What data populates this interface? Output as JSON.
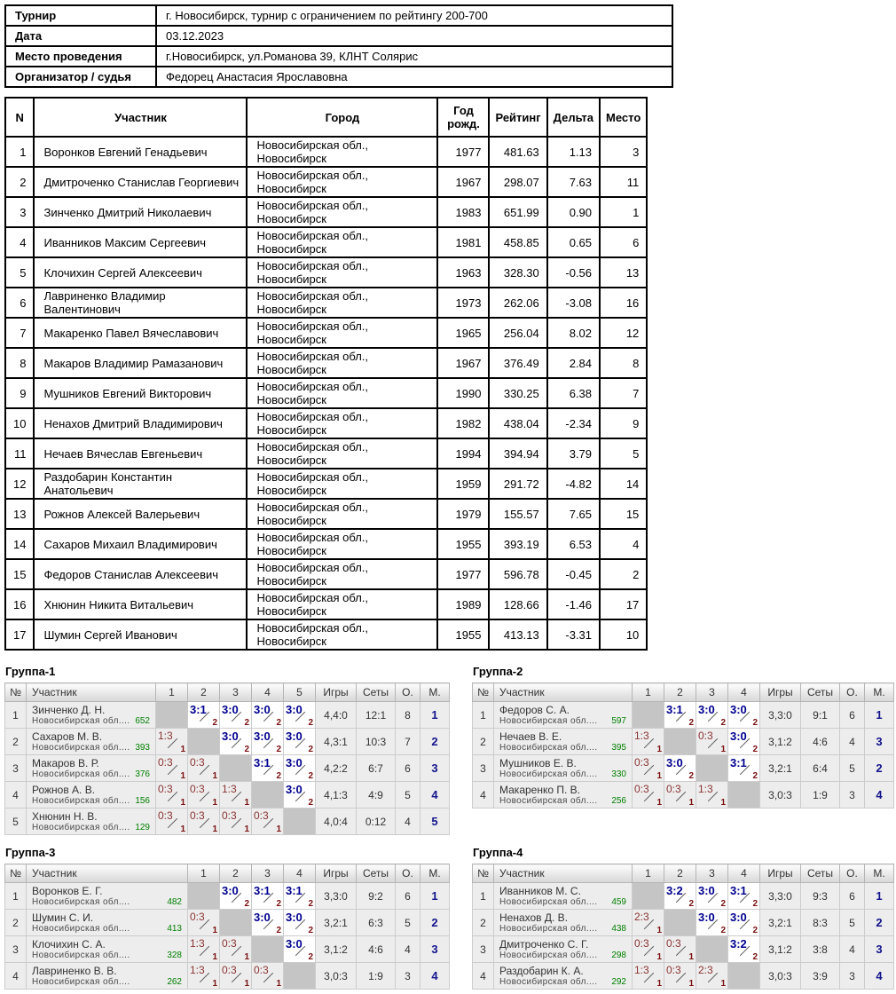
{
  "info": {
    "rows": [
      {
        "label": "Турнир",
        "value": "г. Новосибирск, турнир с ограничением по рейтингу 200-700"
      },
      {
        "label": "Дата",
        "value": "03.12.2023"
      },
      {
        "label": "Место проведения",
        "value": "г.Новосибирск, ул.Романова 39, КЛНТ Солярис"
      },
      {
        "label": "Организатор / судья",
        "value": "Федорец Анастасия Ярославовна"
      }
    ]
  },
  "main_table": {
    "headers": [
      "N",
      "Участник",
      "Город",
      "Год рожд.",
      "Рейтинг",
      "Дельта",
      "Место"
    ],
    "rows": [
      {
        "n": "1",
        "name": "Воронков Евгений Генадьевич",
        "city": "Новосибирская обл., Новосибирск",
        "year": "1977",
        "rating": "481.63",
        "delta": "1.13",
        "place": "3"
      },
      {
        "n": "2",
        "name": "Дмитроченко Станислав Георгиевич",
        "city": "Новосибирская обл., Новосибирск",
        "year": "1967",
        "rating": "298.07",
        "delta": "7.63",
        "place": "11"
      },
      {
        "n": "3",
        "name": "Зинченко Дмитрий Николаевич",
        "city": "Новосибирская обл., Новосибирск",
        "year": "1983",
        "rating": "651.99",
        "delta": "0.90",
        "place": "1"
      },
      {
        "n": "4",
        "name": "Иванников Максим Сергеевич",
        "city": "Новосибирская обл., Новосибирск",
        "year": "1981",
        "rating": "458.85",
        "delta": "0.65",
        "place": "6"
      },
      {
        "n": "5",
        "name": "Клочихин Сергей Алексеевич",
        "city": "Новосибирская обл., Новосибирск",
        "year": "1963",
        "rating": "328.30",
        "delta": "-0.56",
        "place": "13"
      },
      {
        "n": "6",
        "name": "Лавриненко Владимир Валентинович",
        "city": "Новосибирская обл., Новосибирск",
        "year": "1973",
        "rating": "262.06",
        "delta": "-3.08",
        "place": "16"
      },
      {
        "n": "7",
        "name": "Макаренко Павел Вячеславович",
        "city": "Новосибирская обл., Новосибирск",
        "year": "1965",
        "rating": "256.04",
        "delta": "8.02",
        "place": "12"
      },
      {
        "n": "8",
        "name": "Макаров Владимир Рамазанович",
        "city": "Новосибирская обл., Новосибирск",
        "year": "1967",
        "rating": "376.49",
        "delta": "2.84",
        "place": "8"
      },
      {
        "n": "9",
        "name": "Мушников Евгений Викторович",
        "city": "Новосибирская обл., Новосибирск",
        "year": "1990",
        "rating": "330.25",
        "delta": "6.38",
        "place": "7"
      },
      {
        "n": "10",
        "name": "Ненахов Дмитрий Владимирович",
        "city": "Новосибирская обл., Новосибирск",
        "year": "1982",
        "rating": "438.04",
        "delta": "-2.34",
        "place": "9"
      },
      {
        "n": "11",
        "name": "Нечаев Вячеслав Евгеньевич",
        "city": "Новосибирская обл., Новосибирск",
        "year": "1994",
        "rating": "394.94",
        "delta": "3.79",
        "place": "5"
      },
      {
        "n": "12",
        "name": "Раздобарин Константин Анатольевич",
        "city": "Новосибирская обл., Новосибирск",
        "year": "1959",
        "rating": "291.72",
        "delta": "-4.82",
        "place": "14"
      },
      {
        "n": "13",
        "name": "Рожнов Алексей Валерьевич",
        "city": "Новосибирская обл., Новосибирск",
        "year": "1979",
        "rating": "155.57",
        "delta": "7.65",
        "place": "15"
      },
      {
        "n": "14",
        "name": "Сахаров Михаил Владимирович",
        "city": "Новосибирская обл., Новосибирск",
        "year": "1955",
        "rating": "393.19",
        "delta": "6.53",
        "place": "4"
      },
      {
        "n": "15",
        "name": "Федоров Станислав Алексеевич",
        "city": "Новосибирская обл., Новосибирск",
        "year": "1977",
        "rating": "596.78",
        "delta": "-0.45",
        "place": "2"
      },
      {
        "n": "16",
        "name": "Хнюнин Никита Витальевич",
        "city": "Новосибирская обл., Новосибирск",
        "year": "1989",
        "rating": "128.66",
        "delta": "-1.46",
        "place": "17"
      },
      {
        "n": "17",
        "name": "Шумин Сергей Иванович",
        "city": "Новосибирская обл., Новосибирск",
        "year": "1955",
        "rating": "413.13",
        "delta": "-3.31",
        "place": "10"
      }
    ]
  },
  "group_headers": {
    "num": "№",
    "participant": "Участник",
    "games": "Игры",
    "sets": "Сеты",
    "points": "О.",
    "place": "М."
  },
  "groups": [
    {
      "title": "Группа-1",
      "cols": [
        "1",
        "2",
        "3",
        "4",
        "5"
      ],
      "rows": [
        {
          "num": "1",
          "name": "Зинченко Д. Н.",
          "region": "Новосибирская обл....",
          "rating": "652",
          "results": [
            {
              "t": "self"
            },
            {
              "t": "w",
              "s": "3:1",
              "p": "2"
            },
            {
              "t": "w",
              "s": "3:0",
              "p": "2"
            },
            {
              "t": "w",
              "s": "3:0",
              "p": "2"
            },
            {
              "t": "w",
              "s": "3:0",
              "p": "2"
            }
          ],
          "games": "4,4:0",
          "sets": "12:1",
          "points": "8",
          "place": "1"
        },
        {
          "num": "2",
          "name": "Сахаров М. В.",
          "region": "Новосибирская обл....",
          "rating": "393",
          "results": [
            {
              "t": "l",
              "s": "1:3",
              "p": "1"
            },
            {
              "t": "self"
            },
            {
              "t": "w",
              "s": "3:0",
              "p": "2"
            },
            {
              "t": "w",
              "s": "3:0",
              "p": "2"
            },
            {
              "t": "w",
              "s": "3:0",
              "p": "2"
            }
          ],
          "games": "4,3:1",
          "sets": "10:3",
          "points": "7",
          "place": "2"
        },
        {
          "num": "3",
          "name": "Макаров В. Р.",
          "region": "Новосибирская обл....",
          "rating": "376",
          "results": [
            {
              "t": "l",
              "s": "0:3",
              "p": "1"
            },
            {
              "t": "l",
              "s": "0:3",
              "p": "1"
            },
            {
              "t": "self"
            },
            {
              "t": "w",
              "s": "3:1",
              "p": "2"
            },
            {
              "t": "w",
              "s": "3:0",
              "p": "2"
            }
          ],
          "games": "4,2:2",
          "sets": "6:7",
          "points": "6",
          "place": "3"
        },
        {
          "num": "4",
          "name": "Рожнов А. В.",
          "region": "Новосибирская обл....",
          "rating": "156",
          "results": [
            {
              "t": "l",
              "s": "0:3",
              "p": "1"
            },
            {
              "t": "l",
              "s": "0:3",
              "p": "1"
            },
            {
              "t": "l",
              "s": "1:3",
              "p": "1"
            },
            {
              "t": "self"
            },
            {
              "t": "w",
              "s": "3:0",
              "p": "2"
            }
          ],
          "games": "4,1:3",
          "sets": "4:9",
          "points": "5",
          "place": "4"
        },
        {
          "num": "5",
          "name": "Хнюнин Н. В.",
          "region": "Новосибирская обл....",
          "rating": "129",
          "results": [
            {
              "t": "l",
              "s": "0:3",
              "p": "1"
            },
            {
              "t": "l",
              "s": "0:3",
              "p": "1"
            },
            {
              "t": "l",
              "s": "0:3",
              "p": "1"
            },
            {
              "t": "l",
              "s": "0:3",
              "p": "1"
            },
            {
              "t": "self"
            }
          ],
          "games": "4,0:4",
          "sets": "0:12",
          "points": "4",
          "place": "5"
        }
      ]
    },
    {
      "title": "Группа-2",
      "cols": [
        "1",
        "2",
        "3",
        "4"
      ],
      "rows": [
        {
          "num": "1",
          "name": "Федоров С. А.",
          "region": "Новосибирская обл....",
          "rating": "597",
          "results": [
            {
              "t": "self"
            },
            {
              "t": "w",
              "s": "3:1",
              "p": "2"
            },
            {
              "t": "w",
              "s": "3:0",
              "p": "2"
            },
            {
              "t": "w",
              "s": "3:0",
              "p": "2"
            }
          ],
          "games": "3,3:0",
          "sets": "9:1",
          "points": "6",
          "place": "1"
        },
        {
          "num": "2",
          "name": "Нечаев В. Е.",
          "region": "Новосибирская обл....",
          "rating": "395",
          "results": [
            {
              "t": "l",
              "s": "1:3",
              "p": "1"
            },
            {
              "t": "self"
            },
            {
              "t": "l",
              "s": "0:3",
              "p": "1"
            },
            {
              "t": "w",
              "s": "3:0",
              "p": "2"
            }
          ],
          "games": "3,1:2",
          "sets": "4:6",
          "points": "4",
          "place": "3"
        },
        {
          "num": "3",
          "name": "Мушников Е. В.",
          "region": "Новосибирская обл....",
          "rating": "330",
          "results": [
            {
              "t": "l",
              "s": "0:3",
              "p": "1"
            },
            {
              "t": "w",
              "s": "3:0",
              "p": "2"
            },
            {
              "t": "self"
            },
            {
              "t": "w",
              "s": "3:1",
              "p": "2"
            }
          ],
          "games": "3,2:1",
          "sets": "6:4",
          "points": "5",
          "place": "2"
        },
        {
          "num": "4",
          "name": "Макаренко П. В.",
          "region": "Новосибирская обл....",
          "rating": "256",
          "results": [
            {
              "t": "l",
              "s": "0:3",
              "p": "1"
            },
            {
              "t": "l",
              "s": "0:3",
              "p": "1"
            },
            {
              "t": "l",
              "s": "1:3",
              "p": "1"
            },
            {
              "t": "self"
            }
          ],
          "games": "3,0:3",
          "sets": "1:9",
          "points": "3",
          "place": "4"
        }
      ]
    },
    {
      "title": "Группа-3",
      "cols": [
        "1",
        "2",
        "3",
        "4"
      ],
      "rows": [
        {
          "num": "1",
          "name": "Воронков Е. Г.",
          "region": "Новосибирская обл....",
          "rating": "482",
          "results": [
            {
              "t": "self"
            },
            {
              "t": "w",
              "s": "3:0",
              "p": "2"
            },
            {
              "t": "w",
              "s": "3:1",
              "p": "2"
            },
            {
              "t": "w",
              "s": "3:1",
              "p": "2"
            }
          ],
          "games": "3,3:0",
          "sets": "9:2",
          "points": "6",
          "place": "1"
        },
        {
          "num": "2",
          "name": "Шумин С. И.",
          "region": "Новосибирская обл....",
          "rating": "413",
          "results": [
            {
              "t": "l",
              "s": "0:3",
              "p": "1"
            },
            {
              "t": "self"
            },
            {
              "t": "w",
              "s": "3:0",
              "p": "2"
            },
            {
              "t": "w",
              "s": "3:0",
              "p": "2"
            }
          ],
          "games": "3,2:1",
          "sets": "6:3",
          "points": "5",
          "place": "2"
        },
        {
          "num": "3",
          "name": "Клочихин С. А.",
          "region": "Новосибирская обл....",
          "rating": "328",
          "results": [
            {
              "t": "l",
              "s": "1:3",
              "p": "1"
            },
            {
              "t": "l",
              "s": "0:3",
              "p": "1"
            },
            {
              "t": "self"
            },
            {
              "t": "w",
              "s": "3:0",
              "p": "2"
            }
          ],
          "games": "3,1:2",
          "sets": "4:6",
          "points": "4",
          "place": "3"
        },
        {
          "num": "4",
          "name": "Лавриненко В. В.",
          "region": "Новосибирская обл....",
          "rating": "262",
          "results": [
            {
              "t": "l",
              "s": "1:3",
              "p": "1"
            },
            {
              "t": "l",
              "s": "0:3",
              "p": "1"
            },
            {
              "t": "l",
              "s": "0:3",
              "p": "1"
            },
            {
              "t": "self"
            }
          ],
          "games": "3,0:3",
          "sets": "1:9",
          "points": "3",
          "place": "4"
        }
      ]
    },
    {
      "title": "Группа-4",
      "cols": [
        "1",
        "2",
        "3",
        "4"
      ],
      "rows": [
        {
          "num": "1",
          "name": "Иванников М. С.",
          "region": "Новосибирская обл....",
          "rating": "459",
          "results": [
            {
              "t": "self"
            },
            {
              "t": "w",
              "s": "3:2",
              "p": "2"
            },
            {
              "t": "w",
              "s": "3:0",
              "p": "2"
            },
            {
              "t": "w",
              "s": "3:1",
              "p": "2"
            }
          ],
          "games": "3,3:0",
          "sets": "9:3",
          "points": "6",
          "place": "1"
        },
        {
          "num": "2",
          "name": "Ненахов Д. В.",
          "region": "Новосибирская обл....",
          "rating": "438",
          "results": [
            {
              "t": "l",
              "s": "2:3",
              "p": "1"
            },
            {
              "t": "self"
            },
            {
              "t": "w",
              "s": "3:0",
              "p": "2"
            },
            {
              "t": "w",
              "s": "3:0",
              "p": "2"
            }
          ],
          "games": "3,2:1",
          "sets": "8:3",
          "points": "5",
          "place": "2"
        },
        {
          "num": "3",
          "name": "Дмитроченко С. Г.",
          "region": "Новосибирская обл....",
          "rating": "298",
          "results": [
            {
              "t": "l",
              "s": "0:3",
              "p": "1"
            },
            {
              "t": "l",
              "s": "0:3",
              "p": "1"
            },
            {
              "t": "self"
            },
            {
              "t": "w",
              "s": "3:2",
              "p": "2"
            }
          ],
          "games": "3,1:2",
          "sets": "3:8",
          "points": "4",
          "place": "3"
        },
        {
          "num": "4",
          "name": "Раздобарин К. А.",
          "region": "Новосибирская обл....",
          "rating": "292",
          "results": [
            {
              "t": "l",
              "s": "1:3",
              "p": "1"
            },
            {
              "t": "l",
              "s": "0:3",
              "p": "1"
            },
            {
              "t": "l",
              "s": "2:3",
              "p": "1"
            },
            {
              "t": "self"
            }
          ],
          "games": "3,0:3",
          "sets": "3:9",
          "points": "3",
          "place": "4"
        }
      ]
    }
  ],
  "colors": {
    "win_score": "#00008f",
    "loss_score": "#8b3333",
    "points_digit": "#7a0f0f",
    "rating_green": "#008000",
    "place_navy": "#14148c"
  }
}
